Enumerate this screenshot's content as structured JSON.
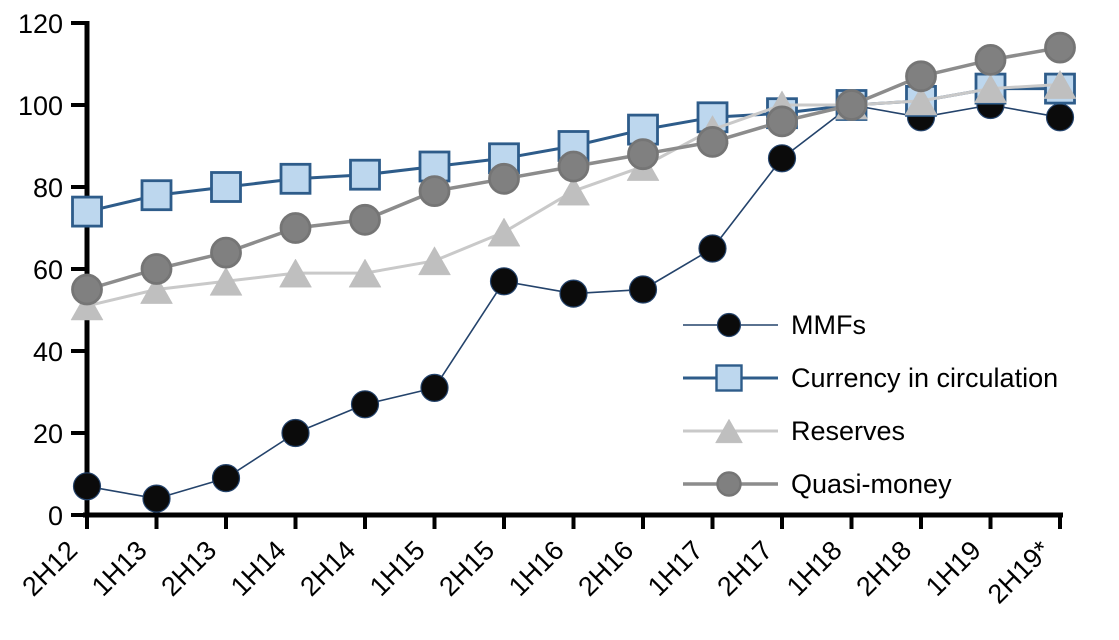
{
  "chart_data": {
    "type": "line",
    "title": "",
    "xlabel": "",
    "ylabel": "",
    "grid": false,
    "legend_position": "inside-right",
    "ylim": [
      0,
      120
    ],
    "yticks": [
      0,
      20,
      40,
      60,
      80,
      100,
      120
    ],
    "categories": [
      "2H12",
      "1H13",
      "2H13",
      "1H14",
      "2H14",
      "1H15",
      "2H15",
      "1H16",
      "2H16",
      "1H17",
      "2H17",
      "1H18",
      "2H18",
      "1H19",
      "2H19*"
    ],
    "series": [
      {
        "name": "MMFs",
        "marker": "circle",
        "marker_color": "#0b0b0b",
        "marker_stroke": "#24436b",
        "line_color": "#24436b",
        "line_width": 1.6,
        "values": [
          7,
          4,
          9,
          20,
          27,
          31,
          57,
          54,
          55,
          65,
          87,
          100,
          97,
          100,
          97
        ]
      },
      {
        "name": "Currency in circulation",
        "marker": "square",
        "marker_color": "#bdd7ee",
        "marker_stroke": "#2e5c8a",
        "line_color": "#2e5c8a",
        "line_width": 3,
        "values": [
          74,
          78,
          80,
          82,
          83,
          85,
          87,
          90,
          94,
          97,
          98,
          100,
          101,
          104,
          104
        ]
      },
      {
        "name": "Reserves",
        "marker": "triangle",
        "marker_color": "#bfbfbf",
        "marker_stroke": "#bfbfbf",
        "line_color": "#c9c9c9",
        "line_width": 3,
        "values": [
          51,
          55,
          57,
          59,
          59,
          62,
          69,
          79,
          85,
          94,
          100,
          100,
          101,
          104,
          105
        ]
      },
      {
        "name": "Quasi-money",
        "marker": "circle",
        "marker_color": "#808080",
        "marker_stroke": "#757575",
        "line_color": "#8c8c8c",
        "line_width": 3.5,
        "values": [
          55,
          60,
          64,
          70,
          72,
          79,
          82,
          85,
          88,
          91,
          96,
          100,
          107,
          111,
          114
        ]
      }
    ],
    "axis_color": "#000000"
  }
}
